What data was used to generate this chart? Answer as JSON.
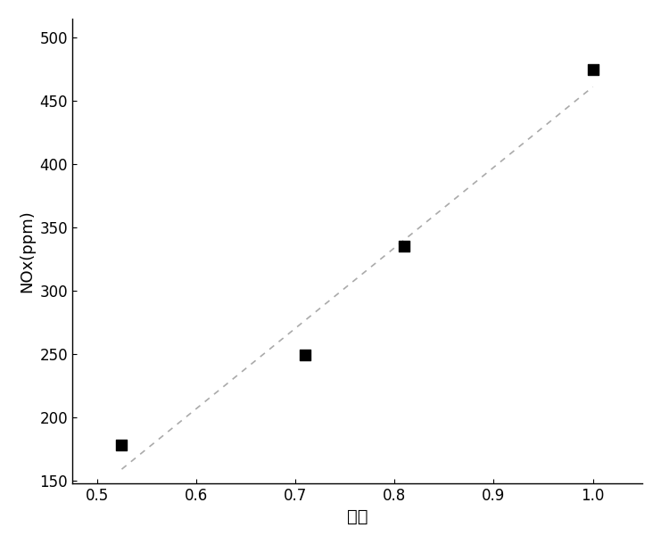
{
  "x": [
    0.525,
    0.71,
    0.81,
    1.0
  ],
  "y": [
    178,
    249,
    335,
    475
  ],
  "xlabel": "工况",
  "ylabel": "NOx(ppm)",
  "xlim": [
    0.475,
    1.05
  ],
  "ylim": [
    148,
    515
  ],
  "xticks": [
    0.5,
    0.6,
    0.7,
    0.8,
    0.9,
    1.0
  ],
  "yticks": [
    150,
    200,
    250,
    300,
    350,
    400,
    450,
    500
  ],
  "marker": "s",
  "marker_color": "black",
  "marker_size": 9,
  "line_style": "--",
  "line_color": "#aaaaaa",
  "line_width": 1.2,
  "background_color": "#ffffff",
  "xlabel_fontsize": 14,
  "ylabel_fontsize": 13,
  "tick_fontsize": 12,
  "line_x": [
    0.525,
    1.0
  ],
  "line_y": [
    178,
    475
  ]
}
